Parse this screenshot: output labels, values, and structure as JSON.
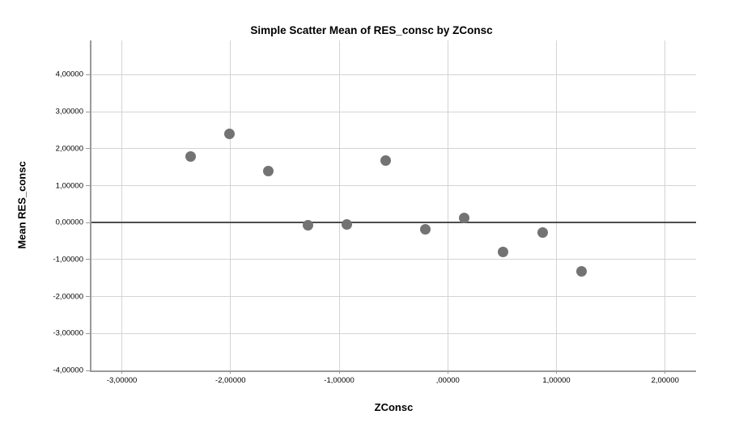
{
  "chart_data": {
    "type": "scatter",
    "title": "Simple Scatter Mean of RES_consc by ZConsc",
    "xlabel": "ZConsc",
    "ylabel": "Mean RES_consc",
    "xlim": [
      -3.28,
      2.285
    ],
    "ylim": [
      -4.0,
      4.93
    ],
    "grid": true,
    "decimal_separator": "comma",
    "x_ticks": [
      {
        "value": -3,
        "label": "-3,00000"
      },
      {
        "value": -2,
        "label": "-2,00000"
      },
      {
        "value": -1,
        "label": "-1,00000"
      },
      {
        "value": 0,
        "label": ",00000"
      },
      {
        "value": 1,
        "label": "1,00000"
      },
      {
        "value": 2,
        "label": "2,00000"
      }
    ],
    "y_ticks": [
      {
        "value": 4,
        "label": "4,00000"
      },
      {
        "value": 3,
        "label": "3,00000"
      },
      {
        "value": 2,
        "label": "2,00000"
      },
      {
        "value": 1,
        "label": "1,00000"
      },
      {
        "value": 0,
        "label": "0,00000"
      },
      {
        "value": -1,
        "label": "-1,00000"
      },
      {
        "value": -2,
        "label": "-2,00000"
      },
      {
        "value": -3,
        "label": "-3,00000"
      },
      {
        "value": -4,
        "label": "-4,00000"
      }
    ],
    "reference_line_y": 0,
    "points": [
      {
        "x": -2.37,
        "y": 1.8
      },
      {
        "x": -2.01,
        "y": 2.4
      },
      {
        "x": -1.65,
        "y": 1.4
      },
      {
        "x": -1.29,
        "y": -0.07
      },
      {
        "x": -0.93,
        "y": -0.05
      },
      {
        "x": -0.57,
        "y": 1.68
      },
      {
        "x": -0.21,
        "y": -0.17
      },
      {
        "x": 0.15,
        "y": 0.13
      },
      {
        "x": 0.51,
        "y": -0.79
      },
      {
        "x": 0.87,
        "y": -0.26
      },
      {
        "x": 1.23,
        "y": -1.32
      }
    ],
    "colors": {
      "marker": "#737373",
      "gridline": "#d4d4d4",
      "axis_line": "#9a9a9a",
      "reference_line": "#4d4d4d",
      "background": "#ffffff",
      "text": "#000000"
    }
  }
}
